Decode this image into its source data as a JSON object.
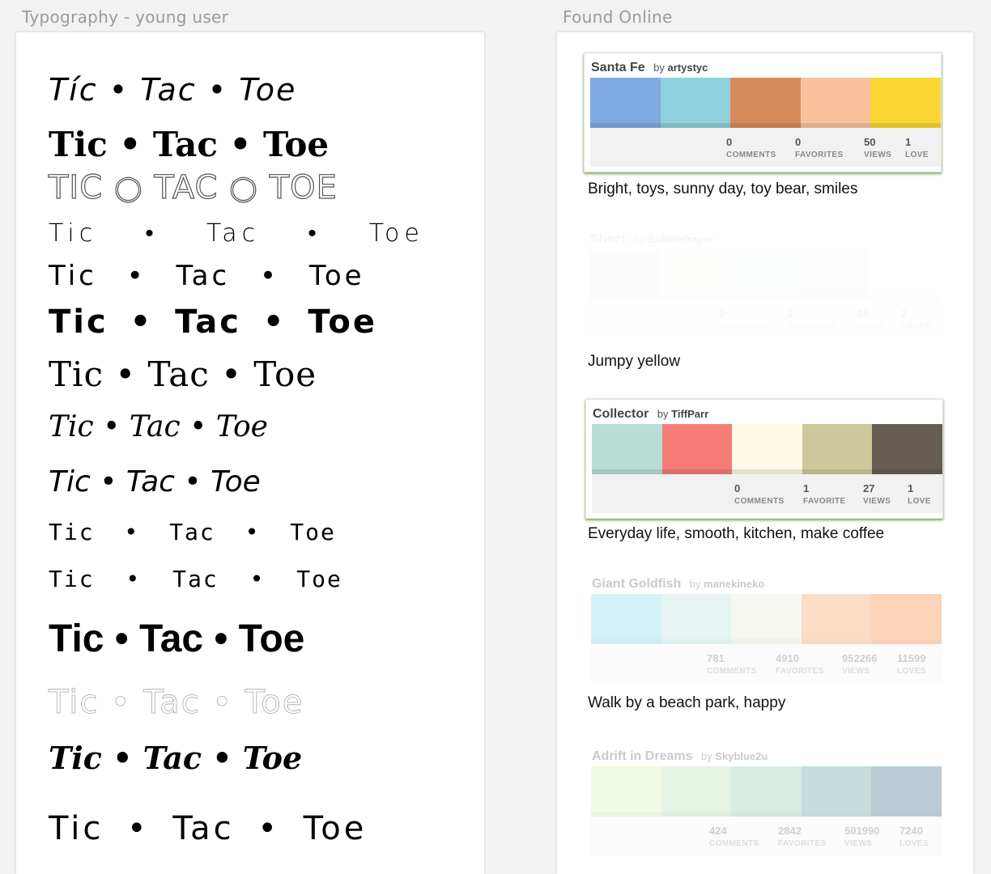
{
  "artboards": {
    "typography_title": "Typography - young user",
    "found_title": "Found Online"
  },
  "typography_samples": [
    "Tíc • Tac • Toe",
    "Tic • Tac • Toe",
    "TIC ○ TAC ○ TOE",
    "Tic  •  Tac  •  Toe",
    "Tic • Tac • Toe",
    "Tic • Tac • Toe",
    "Tic • Tac • Toe",
    "Tic • Tac • Toe",
    "Tic • Tac • Toe",
    "Tic • Tac • Toe",
    "Tic • Tac • Toe",
    "Tic • Tac • Toe",
    "Tic • Tac • Toe",
    "Tic • Tac • Toe",
    "Tic • Tac • Toe"
  ],
  "palettes": [
    {
      "title": "Santa Fe",
      "by": "by",
      "author": "artystyc",
      "colors": [
        "#80aae2",
        "#8fd1dc",
        "#d88b5a",
        "#f9c09c",
        "#fbd733"
      ],
      "stats": [
        {
          "value": "0",
          "label": "COMMENTS"
        },
        {
          "value": "0",
          "label": "FAVORITES"
        },
        {
          "value": "50",
          "label": "VIEWS"
        },
        {
          "value": "1",
          "label": "LOVE"
        }
      ],
      "caption": "Bright, toys, sunny day, toy bear, smiles"
    },
    {
      "title": "Sheet",
      "by": "by",
      "author": "Bubblefraper",
      "colors": [
        "#d8d8d8",
        "#f4f2d4",
        "#e8eef2",
        "#e4e6f0",
        "#ffffff"
      ],
      "stats": [
        {
          "value": "0",
          "label": "COMMENTS"
        },
        {
          "value": "2",
          "label": "FAVORITES"
        },
        {
          "value": "34",
          "label": "VIEWS"
        },
        {
          "value": "2",
          "label": "LOVES"
        }
      ],
      "caption": "Jumpy yellow"
    },
    {
      "title": "Collector",
      "by": "by",
      "author": "TiffParr",
      "colors": [
        "#b8ddd5",
        "#f67c78",
        "#fdfbe6",
        "#cdc99c",
        "#665e54"
      ],
      "stats": [
        {
          "value": "0",
          "label": "COMMENTS"
        },
        {
          "value": "1",
          "label": "FAVORITE"
        },
        {
          "value": "27",
          "label": "VIEWS"
        },
        {
          "value": "1",
          "label": "LOVE"
        }
      ],
      "caption": "Everyday life, smooth, kitchen, make coffee"
    },
    {
      "title": "Giant Goldfish",
      "by": "by",
      "author": "manekineko",
      "colors": [
        "#69d2e7",
        "#a7dbd8",
        "#e0e4cc",
        "#f38630",
        "#fa6900"
      ],
      "stats": [
        {
          "value": "781",
          "label": "COMMENTS"
        },
        {
          "value": "4910",
          "label": "FAVORITES"
        },
        {
          "value": "952266",
          "label": "VIEWS"
        },
        {
          "value": "11599",
          "label": "LOVES"
        }
      ],
      "caption": "Walk by a beach park, happy"
    },
    {
      "title": "Adrift in Dreams",
      "by": "by",
      "author": "Skyblue2u",
      "colors": [
        "#cff09e",
        "#a8dba8",
        "#79bd9a",
        "#3b8686",
        "#0b486b"
      ],
      "stats": [
        {
          "value": "424",
          "label": "COMMENTS"
        },
        {
          "value": "2842",
          "label": "FAVORITES"
        },
        {
          "value": "501990",
          "label": "VIEWS"
        },
        {
          "value": "7240",
          "label": "LOVES"
        }
      ],
      "caption": ""
    }
  ]
}
